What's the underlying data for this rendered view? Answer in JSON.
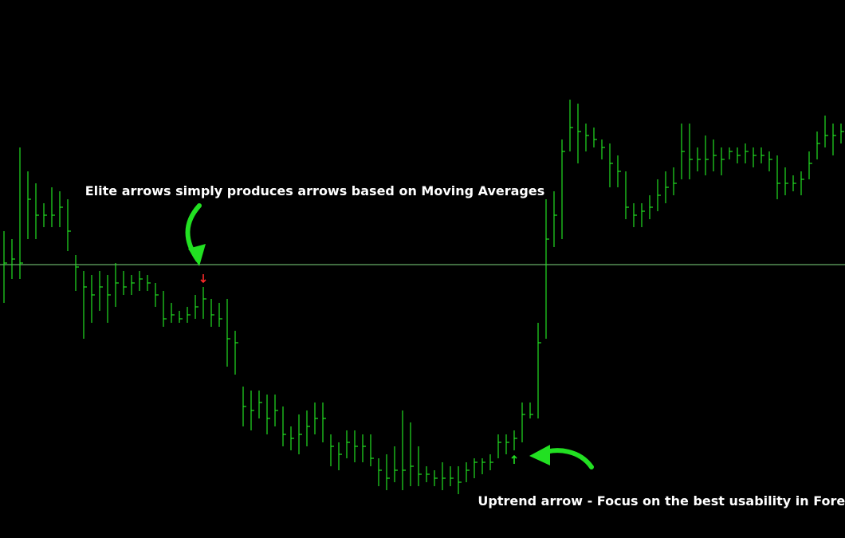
{
  "chart_data": {
    "type": "ohlc",
    "color": "#22e022",
    "ylim": [
      0,
      675
    ],
    "hline": {
      "value": 343,
      "color": "#7fd87f"
    },
    "high": [
      385,
      375,
      490,
      460,
      445,
      420,
      440,
      435,
      425,
      355,
      335,
      330,
      335,
      330,
      345,
      335,
      330,
      335,
      330,
      320,
      310,
      295,
      285,
      290,
      305,
      315,
      300,
      295,
      300,
      260,
      190,
      185,
      185,
      180,
      180,
      165,
      140,
      155,
      160,
      170,
      170,
      130,
      120,
      135,
      135,
      130,
      130,
      100,
      105,
      115,
      160,
      145,
      115,
      90,
      85,
      95,
      90,
      90,
      95,
      100,
      100,
      105,
      130,
      130,
      135,
      170,
      170,
      270,
      425,
      435,
      500,
      550,
      545,
      520,
      515,
      500,
      495,
      480,
      460,
      420,
      420,
      430,
      450,
      460,
      465,
      520,
      520,
      490,
      505,
      500,
      490,
      490,
      490,
      495,
      490,
      490,
      485,
      480,
      465,
      455,
      460,
      485,
      510,
      530,
      520,
      520
    ],
    "low": [
      295,
      325,
      325,
      375,
      375,
      390,
      390,
      390,
      360,
      310,
      250,
      270,
      285,
      270,
      290,
      305,
      305,
      310,
      310,
      290,
      265,
      270,
      270,
      270,
      275,
      275,
      265,
      265,
      215,
      205,
      140,
      135,
      150,
      130,
      140,
      115,
      110,
      105,
      115,
      130,
      120,
      90,
      85,
      100,
      95,
      95,
      90,
      65,
      60,
      70,
      60,
      65,
      65,
      70,
      65,
      60,
      65,
      55,
      70,
      75,
      80,
      85,
      100,
      105,
      110,
      120,
      150,
      150,
      250,
      365,
      375,
      485,
      470,
      485,
      490,
      475,
      440,
      440,
      400,
      390,
      390,
      400,
      410,
      420,
      430,
      450,
      450,
      460,
      455,
      460,
      455,
      475,
      470,
      470,
      465,
      470,
      460,
      425,
      430,
      435,
      430,
      450,
      475,
      490,
      480,
      495
    ],
    "close": [
      345,
      350,
      345,
      425,
      405,
      405,
      405,
      415,
      385,
      340,
      315,
      305,
      315,
      305,
      320,
      315,
      320,
      325,
      320,
      305,
      275,
      280,
      275,
      280,
      290,
      300,
      280,
      275,
      250,
      245,
      165,
      160,
      170,
      150,
      160,
      130,
      125,
      130,
      140,
      150,
      150,
      115,
      105,
      120,
      115,
      115,
      100,
      85,
      75,
      85,
      85,
      90,
      80,
      80,
      75,
      75,
      75,
      70,
      85,
      95,
      95,
      95,
      120,
      120,
      125,
      155,
      155,
      245,
      375,
      405,
      485,
      515,
      510,
      505,
      500,
      490,
      470,
      460,
      415,
      405,
      410,
      415,
      430,
      440,
      445,
      485,
      475,
      475,
      475,
      480,
      475,
      485,
      480,
      485,
      480,
      480,
      475,
      445,
      445,
      445,
      450,
      470,
      495,
      505,
      505,
      510
    ],
    "markers": [
      {
        "index": 25,
        "value": 325,
        "direction": "down",
        "color": "#ff2a2a"
      },
      {
        "index": 64,
        "value": 99,
        "direction": "up",
        "color": "#22e022"
      }
    ],
    "annotations": [
      {
        "text": "Elite arrows simply produces arrows based on Moving Averages"
      },
      {
        "text": "Uptrend arrow - Focus on the best usability in Forex"
      }
    ]
  }
}
